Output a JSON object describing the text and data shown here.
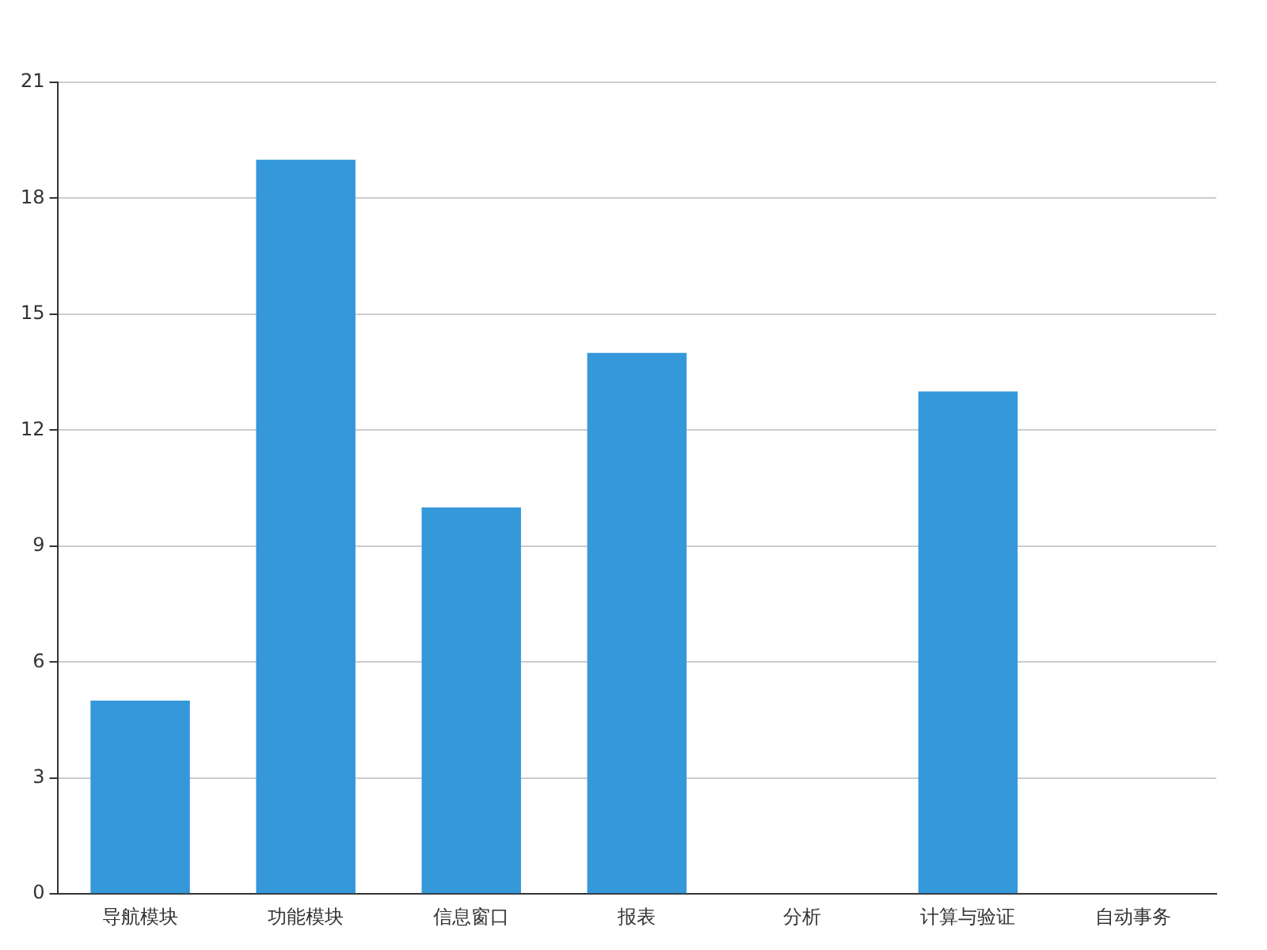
{
  "chart_data": {
    "type": "bar",
    "categories": [
      "导航模块",
      "功能模块",
      "信息窗口",
      "报表",
      "分析",
      "计算与验证",
      "自动事务"
    ],
    "values": [
      5,
      19,
      10,
      14,
      0,
      13,
      0
    ],
    "color": "#3498db",
    "ylim": [
      0,
      21
    ],
    "yticks": [
      0,
      3,
      6,
      9,
      12,
      15,
      18,
      21
    ],
    "grid": "y"
  }
}
